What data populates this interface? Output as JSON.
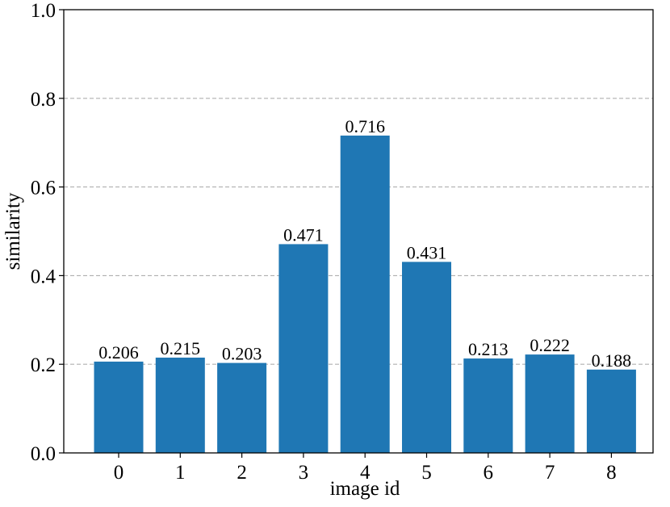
{
  "chart_data": {
    "type": "bar",
    "categories": [
      "0",
      "1",
      "2",
      "3",
      "4",
      "5",
      "6",
      "7",
      "8"
    ],
    "values": [
      0.206,
      0.215,
      0.203,
      0.471,
      0.716,
      0.431,
      0.213,
      0.222,
      0.188
    ],
    "data_labels": [
      "0.206",
      "0.215",
      "0.203",
      "0.471",
      "0.716",
      "0.431",
      "0.213",
      "0.222",
      "0.188"
    ],
    "title": "",
    "xlabel": "image id",
    "ylabel": "similarity",
    "ylim": [
      0.0,
      1.0
    ],
    "yticks": [
      "0.0",
      "0.2",
      "0.4",
      "0.6",
      "0.8",
      "1.0"
    ],
    "grid": "horizontal dashed",
    "bar_color": "#1f77b4",
    "grid_color": "#b0b0b0"
  }
}
